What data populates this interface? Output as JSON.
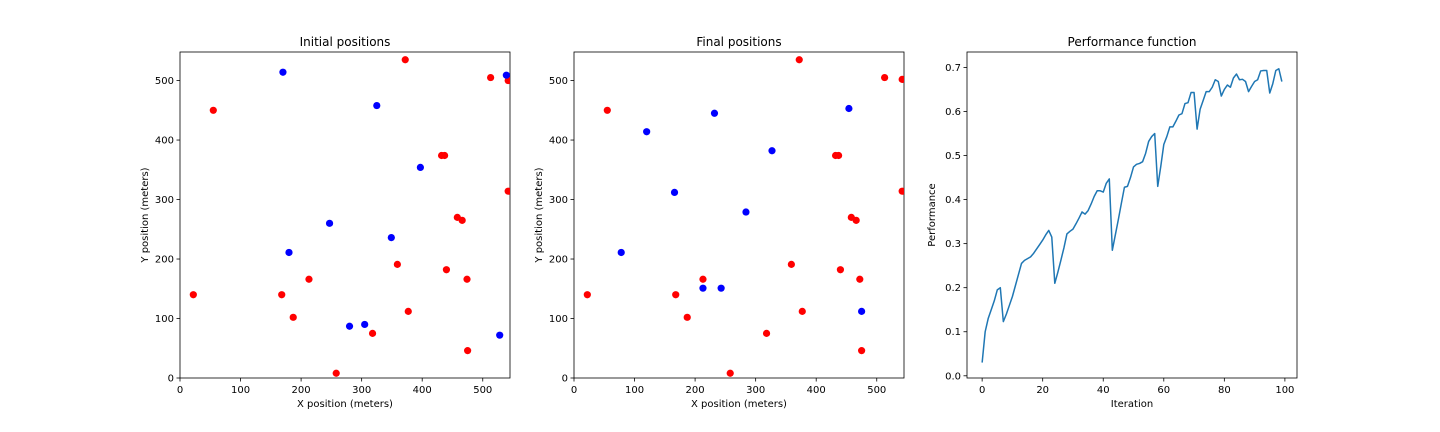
{
  "chart_data": [
    {
      "type": "scatter",
      "title": "Initial positions",
      "xlabel": "X position (meters)",
      "ylabel": "Y position (meters)",
      "xlim": [
        0,
        545
      ],
      "ylim": [
        0,
        548
      ],
      "xticks": [
        0,
        100,
        200,
        300,
        400,
        500
      ],
      "yticks": [
        0,
        100,
        200,
        300,
        400,
        500
      ],
      "grid": false,
      "series": [
        {
          "color": "#ff0000",
          "points": [
            [
              372,
              535
            ],
            [
              513,
              505
            ],
            [
              542,
              500
            ],
            [
              55,
              450
            ],
            [
              432,
              374
            ],
            [
              437,
              374
            ],
            [
              542,
              314
            ],
            [
              458,
              270
            ],
            [
              466,
              265
            ],
            [
              359,
              191
            ],
            [
              213,
              166
            ],
            [
              474,
              166
            ],
            [
              440,
              182
            ],
            [
              22,
              140
            ],
            [
              168,
              140
            ],
            [
              187,
              102
            ],
            [
              377,
              112
            ],
            [
              318,
              75
            ],
            [
              475,
              46
            ],
            [
              258,
              8
            ]
          ]
        },
        {
          "color": "#0000ff",
          "points": [
            [
              170,
              514
            ],
            [
              539,
              509
            ],
            [
              325,
              458
            ],
            [
              397,
              354
            ],
            [
              247,
              260
            ],
            [
              349,
              236
            ],
            [
              180,
              211
            ],
            [
              280,
              87
            ],
            [
              305,
              90
            ],
            [
              528,
              72
            ]
          ]
        }
      ]
    },
    {
      "type": "scatter",
      "title": "Final positions",
      "xlabel": "X position (meters)",
      "ylabel": "Y position (meters)",
      "xlim": [
        0,
        545
      ],
      "ylim": [
        0,
        548
      ],
      "xticks": [
        0,
        100,
        200,
        300,
        400,
        500
      ],
      "yticks": [
        0,
        100,
        200,
        300,
        400,
        500
      ],
      "grid": false,
      "series": [
        {
          "color": "#ff0000",
          "points": [
            [
              372,
              535
            ],
            [
              513,
              505
            ],
            [
              542,
              502
            ],
            [
              55,
              450
            ],
            [
              432,
              374
            ],
            [
              437,
              374
            ],
            [
              542,
              314
            ],
            [
              458,
              270
            ],
            [
              466,
              265
            ],
            [
              359,
              191
            ],
            [
              213,
              166
            ],
            [
              472,
              166
            ],
            [
              440,
              182
            ],
            [
              22,
              140
            ],
            [
              168,
              140
            ],
            [
              187,
              102
            ],
            [
              377,
              112
            ],
            [
              318,
              75
            ],
            [
              475,
              46
            ],
            [
              258,
              8
            ]
          ]
        },
        {
          "color": "#0000ff",
          "points": [
            [
              120,
              414
            ],
            [
              232,
              445
            ],
            [
              454,
              453
            ],
            [
              327,
              382
            ],
            [
              166,
              312
            ],
            [
              284,
              279
            ],
            [
              78,
              211
            ],
            [
              213,
              151
            ],
            [
              243,
              151
            ],
            [
              475,
              112
            ]
          ]
        }
      ]
    },
    {
      "type": "line",
      "title": "Performance function",
      "xlabel": "Iteration",
      "ylabel": "Performance",
      "xlim": [
        -5,
        104
      ],
      "ylim": [
        -0.005,
        0.735
      ],
      "xticks": [
        0,
        20,
        40,
        60,
        80,
        100
      ],
      "yticks": [
        0.0,
        0.1,
        0.2,
        0.3,
        0.4,
        0.5,
        0.6,
        0.7
      ],
      "grid": false,
      "series": [
        {
          "color": "#1f77b4",
          "x": [
            0,
            1,
            2,
            3,
            4,
            5,
            6,
            7,
            8,
            9,
            10,
            11,
            12,
            13,
            14,
            15,
            16,
            17,
            18,
            19,
            20,
            21,
            22,
            23,
            24,
            25,
            26,
            27,
            28,
            29,
            30,
            31,
            32,
            33,
            34,
            35,
            36,
            37,
            38,
            39,
            40,
            41,
            42,
            43,
            44,
            45,
            46,
            47,
            48,
            49,
            50,
            51,
            52,
            53,
            54,
            55,
            56,
            57,
            58,
            59,
            60,
            61,
            62,
            63,
            64,
            65,
            66,
            67,
            68,
            69,
            70,
            71,
            72,
            73,
            74,
            75,
            76,
            77,
            78,
            79,
            80,
            81,
            82,
            83,
            84,
            85,
            86,
            87,
            88,
            89,
            90,
            91,
            92,
            93,
            94,
            95,
            96,
            97,
            98,
            99
          ],
          "y": [
            0.03,
            0.1,
            0.13,
            0.15,
            0.17,
            0.195,
            0.2,
            0.123,
            0.14,
            0.16,
            0.18,
            0.205,
            0.23,
            0.255,
            0.262,
            0.266,
            0.27,
            0.278,
            0.288,
            0.298,
            0.308,
            0.32,
            0.33,
            0.315,
            0.21,
            0.235,
            0.262,
            0.29,
            0.322,
            0.328,
            0.333,
            0.345,
            0.358,
            0.372,
            0.367,
            0.375,
            0.39,
            0.407,
            0.42,
            0.42,
            0.417,
            0.437,
            0.447,
            0.285,
            0.32,
            0.355,
            0.392,
            0.428,
            0.43,
            0.45,
            0.474,
            0.48,
            0.482,
            0.486,
            0.505,
            0.532,
            0.543,
            0.55,
            0.43,
            0.475,
            0.525,
            0.543,
            0.565,
            0.565,
            0.578,
            0.592,
            0.595,
            0.618,
            0.62,
            0.643,
            0.643,
            0.56,
            0.605,
            0.625,
            0.645,
            0.645,
            0.655,
            0.672,
            0.668,
            0.635,
            0.65,
            0.66,
            0.655,
            0.676,
            0.685,
            0.672,
            0.673,
            0.668,
            0.645,
            0.657,
            0.668,
            0.672,
            0.692,
            0.693,
            0.693,
            0.642,
            0.663,
            0.693,
            0.697,
            0.668
          ]
        }
      ]
    }
  ]
}
